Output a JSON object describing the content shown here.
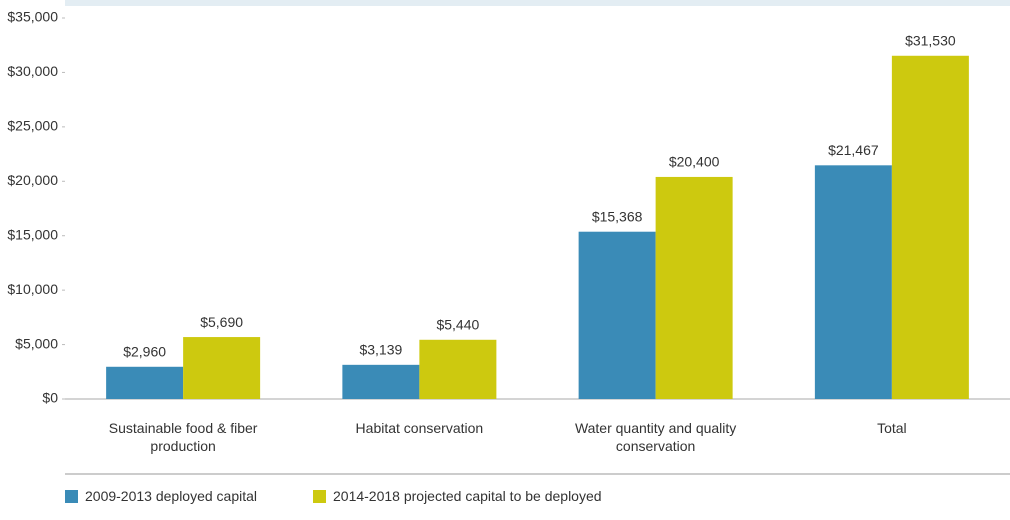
{
  "chart_data": {
    "type": "bar",
    "categories": [
      "Sustainable food & fiber production",
      "Habitat conservation",
      "Water quantity and quality conservation",
      "Total"
    ],
    "series": [
      {
        "name": "2009-2013 deployed capital",
        "color": "#3a8bb7",
        "values": [
          2960,
          3139,
          15368,
          21467
        ],
        "value_labels": [
          "$2,960",
          "$3,139",
          "$15,368",
          "$21,467"
        ]
      },
      {
        "name": "2014-2018 projected capital to be deployed",
        "color": "#cdc90f",
        "values": [
          5690,
          5440,
          20400,
          31530
        ],
        "value_labels": [
          "$5,690",
          "$5,440",
          "$20,400",
          "$31,530"
        ]
      }
    ],
    "ylim": [
      0,
      35000
    ],
    "yticks": [
      {
        "value": 0,
        "label": "$0"
      },
      {
        "value": 5000,
        "label": "$5,000"
      },
      {
        "value": 10000,
        "label": "$10,000"
      },
      {
        "value": 15000,
        "label": "$15,000"
      },
      {
        "value": 20000,
        "label": "$20,000"
      },
      {
        "value": 25000,
        "label": "$25,000"
      },
      {
        "value": 30000,
        "label": "$30,000"
      },
      {
        "value": 35000,
        "label": "$35,000"
      }
    ],
    "legend": "bottom-left"
  }
}
